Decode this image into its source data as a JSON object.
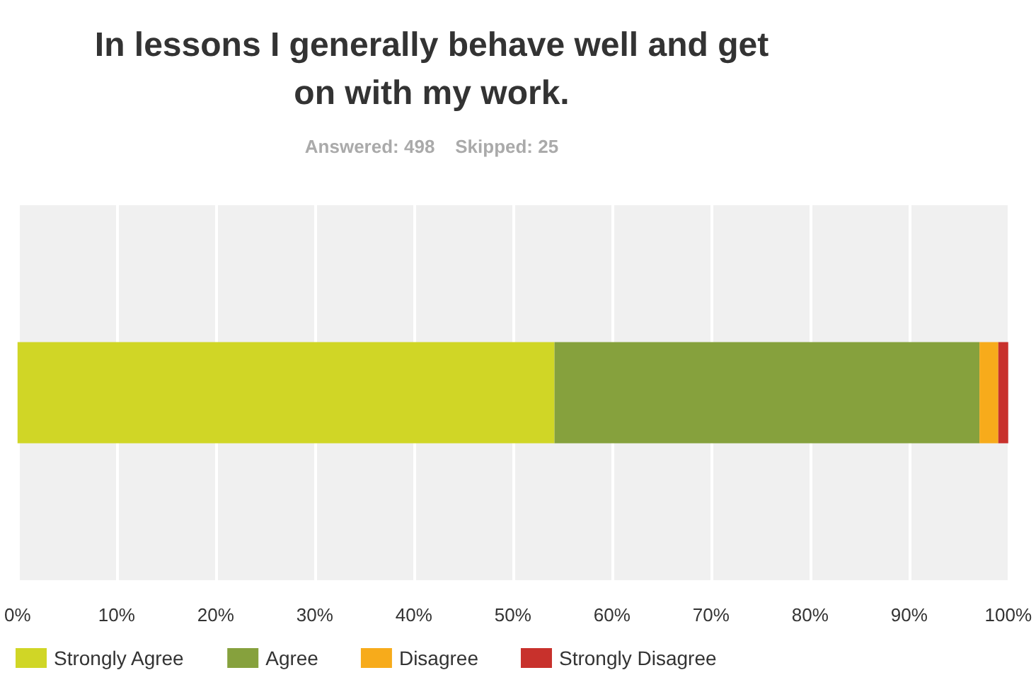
{
  "chart_data": {
    "type": "bar",
    "orientation": "horizontal",
    "stacked": true,
    "title": "In lessons I generally behave well and get\non with my work.",
    "subtitle": "Answered: 498    Skipped: 25",
    "categories": [
      null
    ],
    "series": [
      {
        "name": "Strongly Agree",
        "color": "#d0d626",
        "values": [
          54.2
        ]
      },
      {
        "name": "Agree",
        "color": "#86a13d",
        "values": [
          42.9
        ]
      },
      {
        "name": "Disagree",
        "color": "#f7ab1b",
        "values": [
          1.9
        ]
      },
      {
        "name": "Strongly Disagree",
        "color": "#c8312c",
        "values": [
          1.0
        ]
      }
    ],
    "xlim": [
      0,
      100
    ],
    "xticks": [
      {
        "value": 0,
        "label": "0%"
      },
      {
        "value": 10,
        "label": "10%"
      },
      {
        "value": 20,
        "label": "20%"
      },
      {
        "value": 30,
        "label": "30%"
      },
      {
        "value": 40,
        "label": "40%"
      },
      {
        "value": 50,
        "label": "50%"
      },
      {
        "value": 60,
        "label": "60%"
      },
      {
        "value": 70,
        "label": "70%"
      },
      {
        "value": 80,
        "label": "80%"
      },
      {
        "value": 90,
        "label": "90%"
      },
      {
        "value": 100,
        "label": "100%"
      }
    ],
    "grid": "x",
    "legend": "bottom left"
  }
}
